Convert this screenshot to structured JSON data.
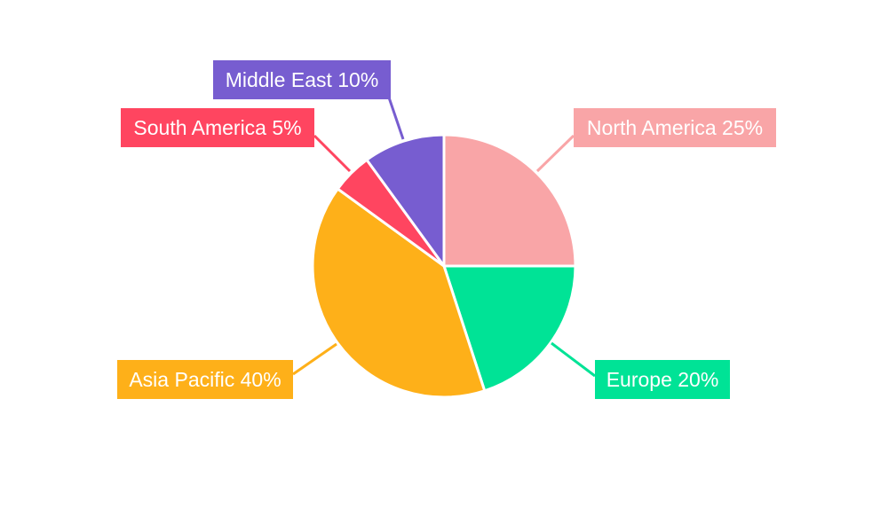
{
  "chart_data": {
    "type": "pie",
    "title": "",
    "start_angle": "top, clockwise",
    "legend": "none",
    "slices": [
      {
        "label": "North America",
        "value": 25,
        "display": "North America 25%",
        "color": "#F9A5A7"
      },
      {
        "label": "Europe",
        "value": 20,
        "display": "Europe 20%",
        "color": "#00E396"
      },
      {
        "label": "Asia Pacific",
        "value": 40,
        "display": "Asia Pacific 40%",
        "color": "#FEB019"
      },
      {
        "label": "South America",
        "value": 5,
        "display": "South America 5%",
        "color": "#FF4560"
      },
      {
        "label": "Middle East",
        "value": 10,
        "display": "Middle East 10%",
        "color": "#775DD0"
      }
    ]
  }
}
